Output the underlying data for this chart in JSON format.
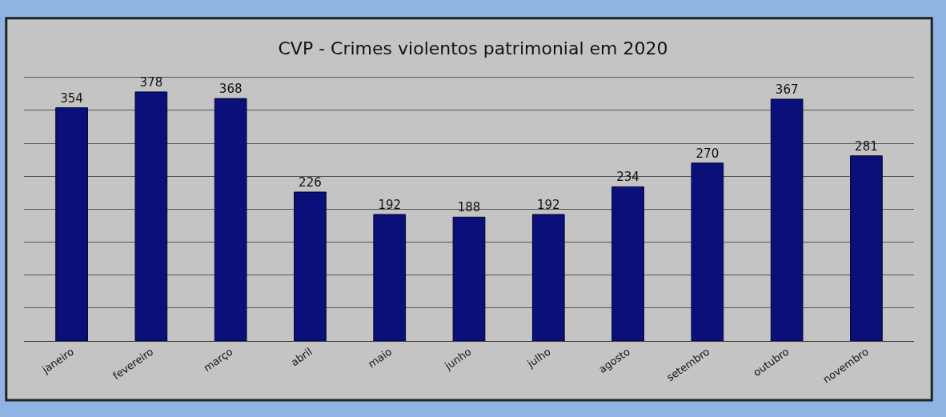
{
  "chart_data": {
    "type": "bar",
    "title": "CVP - Crimes violentos patrimonial em 2020",
    "categories": [
      "janeiro",
      "fevereiro",
      "março",
      "abril",
      "maio",
      "junho",
      "julho",
      "agosto",
      "setembro",
      "outubro",
      "novembro"
    ],
    "values": [
      354,
      378,
      368,
      226,
      192,
      188,
      192,
      234,
      270,
      367,
      281
    ],
    "color": "#0b0f7a",
    "data_labels": true,
    "tick_labels": "x",
    "grid": "y"
  }
}
